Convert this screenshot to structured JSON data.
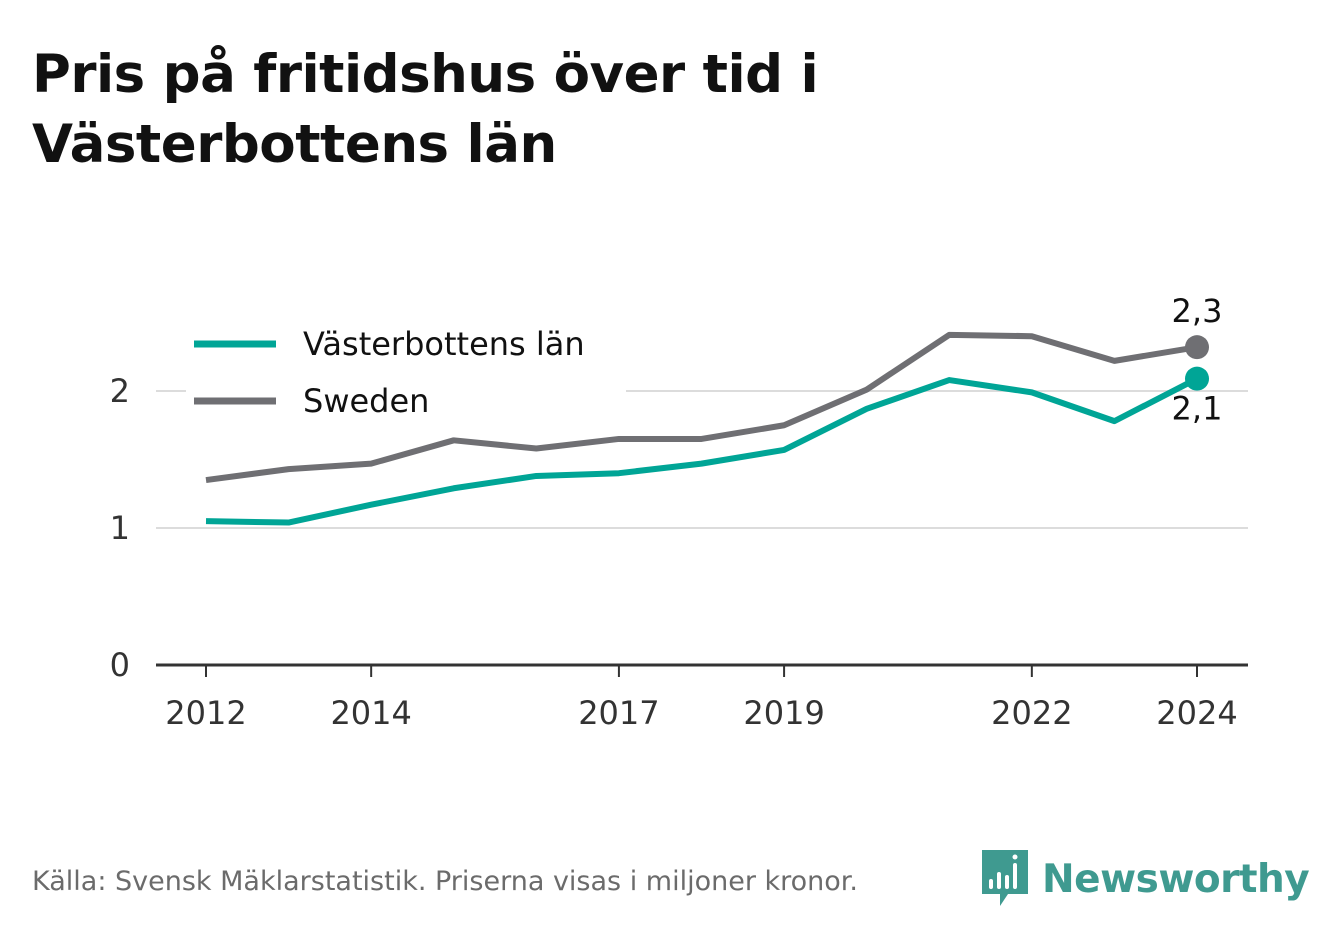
{
  "title": "Pris på fritidshus över tid i Västerbottens län",
  "footer": {
    "source": "Källa: Svensk Mäklarstatistik. Priserna visas i miljoner kronor."
  },
  "brand": {
    "name": "Newsworthy",
    "icon": "bar-chart-speech-bubble-icon",
    "color": "#3f9a90"
  },
  "chart_data": {
    "type": "line",
    "x": [
      2012,
      2013,
      2014,
      2015,
      2016,
      2017,
      2018,
      2019,
      2020,
      2021,
      2022,
      2023,
      2024
    ],
    "x_ticks": [
      2012,
      2014,
      2017,
      2019,
      2022,
      2024
    ],
    "y_ticks": [
      0,
      1,
      2
    ],
    "ylim": [
      0,
      2.65
    ],
    "grid": true,
    "legend_placement": "top-left",
    "series": [
      {
        "name": "Västerbottens län",
        "color": "#00a596",
        "values": [
          1.05,
          1.04,
          1.17,
          1.29,
          1.38,
          1.4,
          1.47,
          1.57,
          1.87,
          2.08,
          1.99,
          1.78,
          2.09
        ],
        "end_label": "2,1"
      },
      {
        "name": "Sweden",
        "color": "#6f6f73",
        "values": [
          1.35,
          1.43,
          1.47,
          1.64,
          1.58,
          1.65,
          1.65,
          1.75,
          2.01,
          2.41,
          2.4,
          2.22,
          2.32
        ],
        "end_label": "2,3"
      }
    ]
  }
}
